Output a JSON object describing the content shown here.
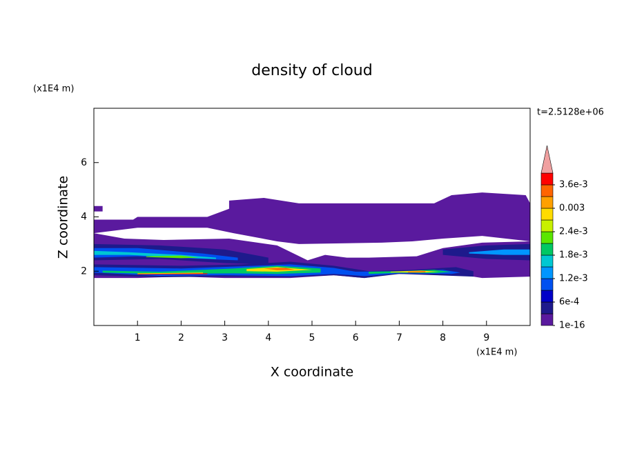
{
  "chart_data": {
    "type": "filled-contour",
    "title": "density of cloud",
    "x_label": "X coordinate",
    "y_label": "Z coordinate",
    "x_unit": "(x1E4 m)",
    "y_unit": "(x1E4 m)",
    "annotation": "t=2.5128e+06",
    "xlim": [
      0,
      10
    ],
    "ylim": [
      0,
      8
    ],
    "xticks": [
      1,
      2,
      3,
      4,
      5,
      6,
      7,
      8,
      9
    ],
    "yticks": [
      2,
      4,
      6
    ],
    "levels": [
      1e-16,
      0.0003,
      0.0006,
      0.0009,
      0.0012,
      0.0015,
      0.0018,
      0.0021,
      0.0024,
      0.0027,
      0.003,
      0.0033,
      0.0036,
      0.0039
    ],
    "colors": [
      "#5a1a9e",
      "#1e1a8c",
      "#0000c8",
      "#0050f0",
      "#0096ff",
      "#00c8d2",
      "#00c864",
      "#5ae600",
      "#c8f000",
      "#ffdc00",
      "#ffa000",
      "#ff6400",
      "#ff0000"
    ],
    "extend_color": "#f0a0a0",
    "colorbar_ticks": [
      1e-16,
      {
        "value": 0.0006,
        "label": "6e-4"
      },
      {
        "value": 0.0012,
        "label": "1.2e-3"
      },
      {
        "value": 0.0018,
        "label": "1.8e-3"
      },
      {
        "value": 0.0024,
        "label": "2.4e-3"
      },
      0.003,
      {
        "value": 0.0036,
        "label": "3.6e-3"
      }
    ],
    "regions": [
      {
        "level": 1e-16,
        "x": [
          0,
          0.9,
          1,
          2.6,
          3.1,
          3.1,
          3.9,
          4.7,
          6.8,
          7.8,
          8.2,
          8.9,
          9.9,
          10,
          10,
          8.9,
          8,
          7.3,
          6.6,
          4.7,
          4.2,
          3.2,
          2.6,
          1,
          0
        ],
        "z": [
          3.9,
          3.9,
          4.0,
          4.0,
          4.3,
          4.6,
          4.7,
          4.5,
          4.5,
          4.5,
          4.8,
          4.9,
          4.8,
          4.5,
          3.1,
          3.3,
          3.2,
          3.1,
          3.05,
          3.0,
          3.1,
          3.4,
          3.6,
          3.6,
          3.4
        ]
      },
      {
        "level": 1e-16,
        "x": [
          0,
          0.7,
          1.6,
          3.1,
          4.2,
          4.9,
          5.3,
          5.8,
          6.3,
          7.4,
          8,
          8.9,
          10,
          10,
          8.9,
          8.7,
          8,
          6.9,
          6.2,
          5.5,
          4.5,
          3,
          2,
          1,
          0
        ],
        "z": [
          3.4,
          3.2,
          3.15,
          3.2,
          2.95,
          2.4,
          2.6,
          2.5,
          2.5,
          2.55,
          2.85,
          3.05,
          3.1,
          1.8,
          1.75,
          1.8,
          1.9,
          1.9,
          1.75,
          1.85,
          1.75,
          1.75,
          1.8,
          1.75,
          1.75
        ]
      },
      {
        "level": 1e-16,
        "x": [
          0,
          0.2,
          0.2,
          0
        ],
        "z": [
          4.4,
          4.4,
          4.2,
          4.2
        ]
      },
      {
        "level": 0.0003,
        "x": [
          0,
          1.5,
          3,
          4,
          4,
          3,
          1.5,
          0
        ],
        "z": [
          3.0,
          2.95,
          2.8,
          2.5,
          2.25,
          2.3,
          2.45,
          2.4
        ]
      },
      {
        "level": 0.0009,
        "x": [
          0,
          1,
          2.5,
          3.3,
          3.3,
          2.5,
          1,
          0
        ],
        "z": [
          2.85,
          2.85,
          2.65,
          2.5,
          2.4,
          2.45,
          2.55,
          2.5
        ]
      },
      {
        "level": 0.0015,
        "x": [
          0,
          0.8,
          2,
          2.8,
          2.8,
          2,
          0.8,
          0
        ],
        "z": [
          2.75,
          2.7,
          2.6,
          2.5,
          2.45,
          2.5,
          2.6,
          2.6
        ]
      },
      {
        "level": 0.0021,
        "x": [
          1.2,
          2,
          2.4,
          2,
          1.2
        ],
        "z": [
          2.55,
          2.57,
          2.5,
          2.48,
          2.52
        ]
      },
      {
        "level": 0.0003,
        "x": [
          8,
          9,
          10,
          10,
          9,
          8
        ],
        "z": [
          2.8,
          2.95,
          3.0,
          2.4,
          2.45,
          2.6
        ]
      },
      {
        "level": 0.0012,
        "x": [
          8.6,
          9.4,
          10,
          10,
          9.4,
          8.6
        ],
        "z": [
          2.7,
          2.8,
          2.8,
          2.6,
          2.6,
          2.65
        ]
      },
      {
        "level": 0.0003,
        "x": [
          0,
          2,
          3.4,
          4.5,
          5.5,
          6.3,
          7.3,
          8.3,
          8.7,
          8.7,
          7,
          6.2,
          5.5,
          4.5,
          3,
          1.5,
          0
        ],
        "z": [
          2.25,
          2.2,
          2.25,
          2.35,
          2.2,
          2.0,
          2.05,
          2.15,
          2.0,
          1.8,
          1.9,
          1.75,
          1.85,
          1.78,
          1.8,
          1.78,
          1.85
        ]
      },
      {
        "level": 0.0009,
        "x": [
          0,
          2,
          3.4,
          4.5,
          5.5,
          6,
          7,
          8,
          8.4,
          8.2,
          7,
          6.2,
          5.5,
          4.5,
          3,
          1.5,
          0
        ],
        "z": [
          2.15,
          2.1,
          2.18,
          2.25,
          2.12,
          1.98,
          2.0,
          2.05,
          1.95,
          1.9,
          1.92,
          1.82,
          1.9,
          1.82,
          1.85,
          1.83,
          1.95
        ]
      },
      {
        "level": 0.0018,
        "x": [
          0.2,
          1.5,
          3.2,
          4.2,
          5.2,
          5.2,
          4.2,
          3.2,
          1.5,
          0.2
        ],
        "z": [
          2.02,
          1.98,
          2.1,
          2.2,
          2.1,
          1.95,
          1.9,
          1.92,
          1.9,
          1.95
        ]
      },
      {
        "level": 0.0018,
        "x": [
          6.3,
          7,
          7.8,
          8.2,
          7.8,
          7,
          6.3
        ],
        "z": [
          1.98,
          2.0,
          2.05,
          1.97,
          1.93,
          1.94,
          1.9
        ]
      },
      {
        "level": 0.0027,
        "x": [
          3.5,
          4.2,
          5,
          4.2,
          3.5
        ],
        "z": [
          2.08,
          2.15,
          2.05,
          1.98,
          2.0
        ]
      },
      {
        "level": 0.0027,
        "x": [
          6.8,
          7.5,
          7.9,
          7.5,
          6.8
        ],
        "z": [
          1.98,
          2.02,
          1.98,
          1.95,
          1.96
        ]
      },
      {
        "level": 0.0027,
        "x": [
          1,
          2.5,
          2.5,
          1
        ],
        "z": [
          1.92,
          1.95,
          1.9,
          1.88
        ]
      },
      {
        "level": 0.0033,
        "x": [
          3.9,
          4.4,
          4.6,
          4.2
        ],
        "z": [
          2.1,
          2.12,
          2.05,
          2.04
        ]
      },
      {
        "level": 0.0033,
        "x": [
          7.2,
          7.6,
          7.6,
          7.2
        ],
        "z": [
          1.98,
          2.0,
          1.96,
          1.95
        ]
      },
      {
        "level": 0.0036,
        "x": [
          1,
          2.6,
          2.6,
          1
        ],
        "z": [
          1.9,
          1.92,
          1.89,
          1.88
        ]
      }
    ]
  }
}
